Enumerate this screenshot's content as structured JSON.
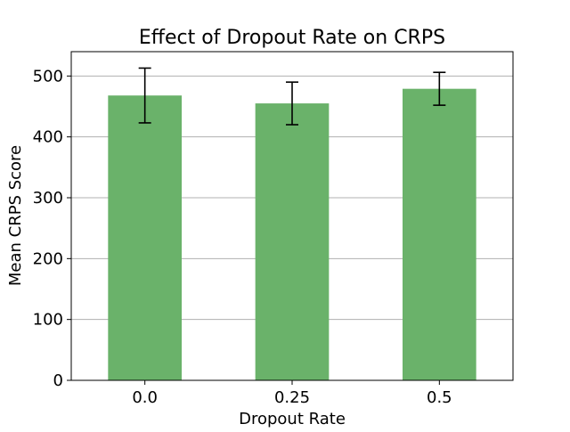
{
  "chart_data": {
    "type": "bar",
    "title": "Effect of Dropout Rate on CRPS",
    "xlabel": "Dropout Rate",
    "ylabel": "Mean CRPS Score",
    "categories": [
      "0.0",
      "0.25",
      "0.5"
    ],
    "values": [
      468,
      455,
      479
    ],
    "error_low": [
      423,
      420,
      452
    ],
    "error_high": [
      513,
      490,
      506
    ],
    "ylim": [
      0,
      540
    ],
    "yticks": [
      0,
      100,
      200,
      300,
      400,
      500
    ],
    "grid": "y",
    "bar_color": "#6ab26a",
    "error_bar_color": "#000000",
    "grid_color": "#b0b0b0"
  }
}
